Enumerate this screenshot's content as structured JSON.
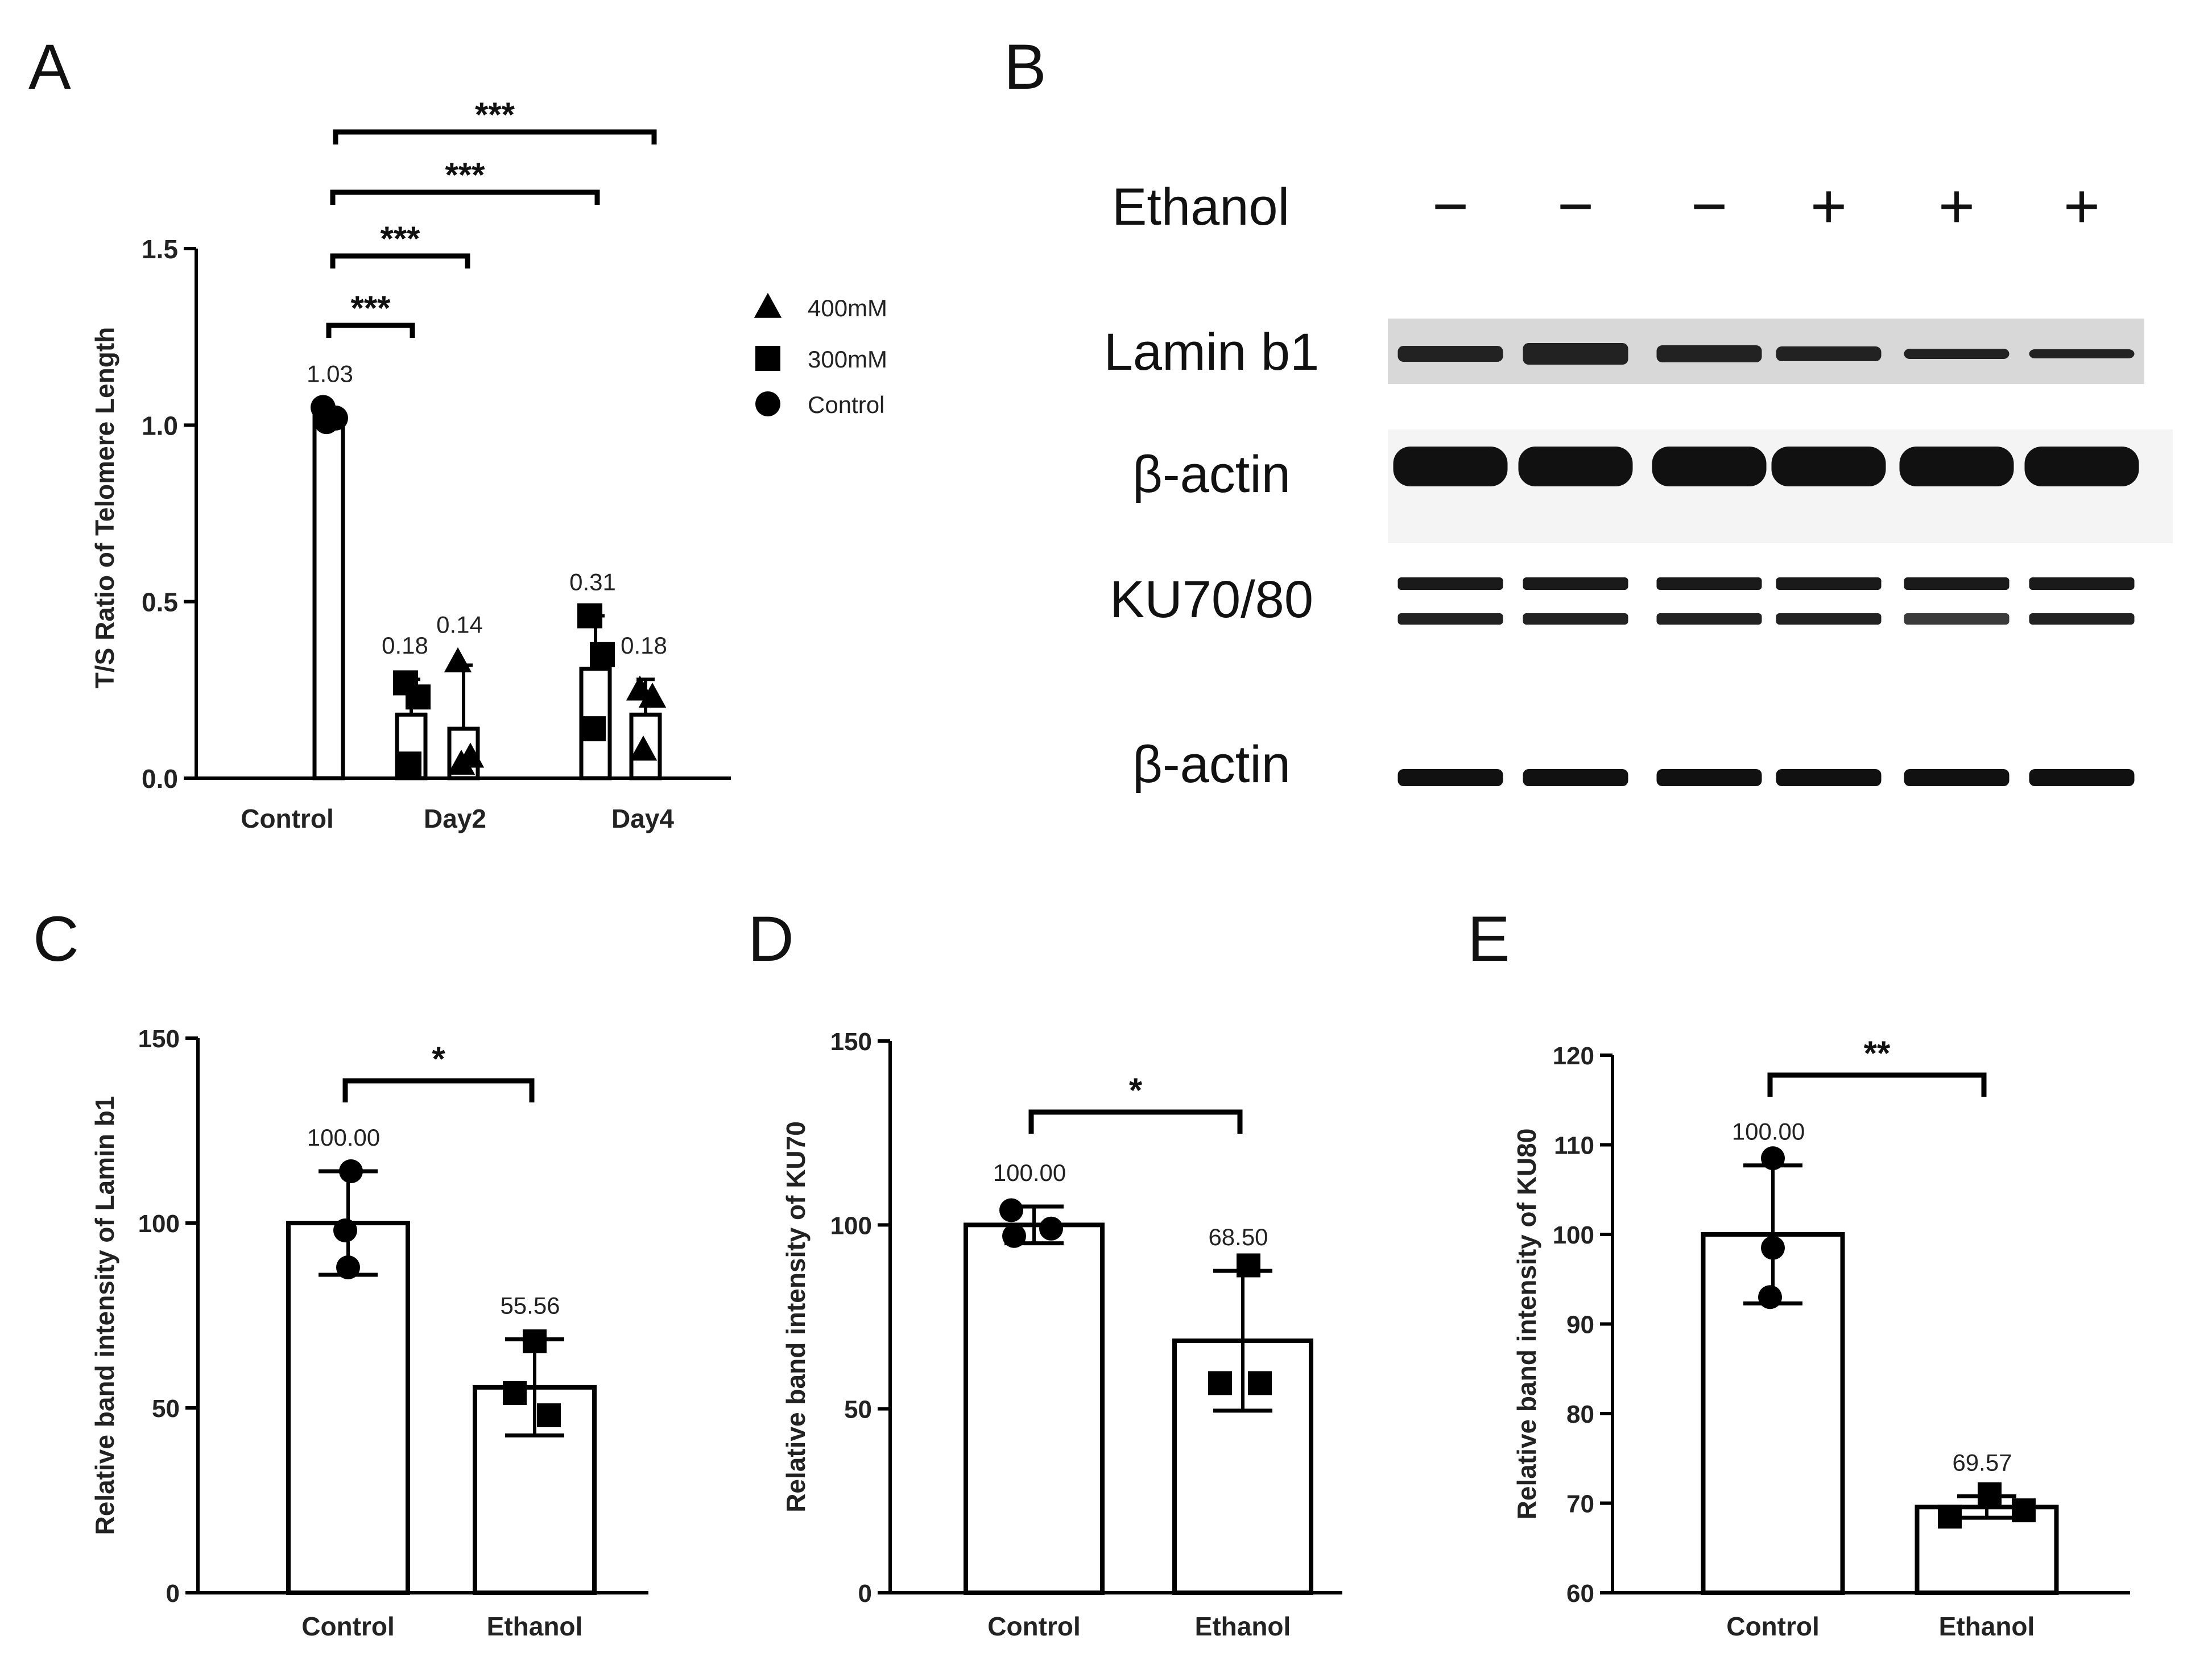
{
  "panels": {
    "A": "A",
    "B": "B",
    "C": "C",
    "D": "D",
    "E": "E"
  },
  "chart_data": [
    {
      "panel": "A",
      "type": "bar",
      "ylabel": "T/S Ratio of Telomere Length",
      "ylim": [
        0,
        1.5
      ],
      "yticks": [
        "0.0",
        "0.5",
        "1.0",
        "1.5"
      ],
      "categories": [
        "Control",
        "Day2",
        "Day4"
      ],
      "legend": {
        "placement": "right",
        "entries": [
          {
            "label": "400mM",
            "marker": "triangle"
          },
          {
            "label": "300mM",
            "marker": "square"
          },
          {
            "label": "Control",
            "marker": "circle"
          }
        ]
      },
      "bars": [
        {
          "group": "Control",
          "series": "Control",
          "value": 1.03,
          "label": "1.03",
          "err": 0.02,
          "marker": "circle",
          "points": [
            1.05,
            1.02,
            1.01
          ]
        },
        {
          "group": "Day2",
          "series": "300mM",
          "value": 0.18,
          "label": "0.18",
          "err": 0.1,
          "marker": "square",
          "points": [
            0.27,
            0.23,
            0.04
          ]
        },
        {
          "group": "Day2",
          "series": "400mM",
          "value": 0.14,
          "label": "0.14",
          "err": 0.18,
          "marker": "triangle",
          "points": [
            0.33,
            0.06,
            0.04
          ]
        },
        {
          "group": "Day4",
          "series": "300mM",
          "value": 0.31,
          "label": "0.31",
          "err": 0.15,
          "marker": "square",
          "points": [
            0.46,
            0.35,
            0.14
          ]
        },
        {
          "group": "Day4",
          "series": "400mM",
          "value": 0.18,
          "label": "0.18",
          "err": 0.1,
          "marker": "triangle",
          "points": [
            0.25,
            0.23,
            0.08
          ]
        }
      ],
      "significance": [
        "***",
        "***",
        "***",
        "***"
      ]
    },
    {
      "panel": "B",
      "type": "western_blot",
      "condition_label": "Ethanol",
      "lanes": [
        "−",
        "−",
        "−",
        "+",
        "+",
        "+"
      ],
      "rows": [
        "Lamin b1",
        "β-actin",
        "KU70/80",
        "β-actin"
      ]
    },
    {
      "panel": "C",
      "type": "bar",
      "ylabel": "Relative band intensity of Lamin b1",
      "ylim": [
        0,
        150
      ],
      "yticks": [
        "0",
        "50",
        "100",
        "150"
      ],
      "categories": [
        "Control",
        "Ethanol"
      ],
      "values": [
        100.0,
        55.56
      ],
      "value_labels": [
        "100.00",
        "55.56"
      ],
      "errors": [
        14,
        13
      ],
      "markers": [
        "circle",
        "square"
      ],
      "points": [
        [
          114,
          98,
          88
        ],
        [
          68,
          54,
          48
        ]
      ],
      "significance": "*"
    },
    {
      "panel": "D",
      "type": "bar",
      "ylabel": "Relative band intensity of KU70",
      "ylim": [
        0,
        150
      ],
      "yticks": [
        "0",
        "50",
        "100",
        "150"
      ],
      "categories": [
        "Control",
        "Ethanol"
      ],
      "values": [
        100.0,
        68.5
      ],
      "value_labels": [
        "100.00",
        "68.50"
      ],
      "errors": [
        5,
        19
      ],
      "markers": [
        "circle",
        "square"
      ],
      "points": [
        [
          104,
          97,
          99
        ],
        [
          89,
          57,
          57
        ]
      ],
      "significance": "*"
    },
    {
      "panel": "E",
      "type": "bar",
      "ylabel": "Relative band intensity of KU80",
      "ylim": [
        60,
        120
      ],
      "yticks": [
        "60",
        "70",
        "80",
        "90",
        "100",
        "110",
        "120"
      ],
      "categories": [
        "Control",
        "Ethanol"
      ],
      "values": [
        100.0,
        69.57
      ],
      "value_labels": [
        "100.00",
        "69.57"
      ],
      "errors": [
        7.7,
        1.2
      ],
      "markers": [
        "circle",
        "square"
      ],
      "points": [
        [
          108.5,
          98.5,
          93
        ],
        [
          68.5,
          71,
          69.2
        ]
      ],
      "significance": "**"
    }
  ]
}
